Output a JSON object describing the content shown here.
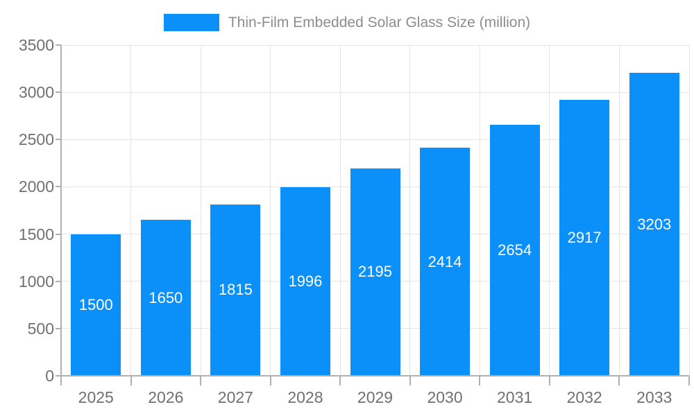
{
  "chart_data": {
    "type": "bar",
    "title": "Thin-Film Embedded Solar Glass Size (million)",
    "legend": {
      "position": "top",
      "entries": [
        "Thin-Film Embedded Solar Glass Size (million)"
      ]
    },
    "categories": [
      "2025",
      "2026",
      "2027",
      "2028",
      "2029",
      "2030",
      "2031",
      "2032",
      "2033"
    ],
    "series": [
      {
        "name": "Thin-Film Embedded Solar Glass Size (million)",
        "values": [
          1500,
          1650,
          1815,
          1996,
          2195,
          2414,
          2654,
          2917,
          3203
        ]
      }
    ],
    "value_labels_shown": true,
    "xlabel": "",
    "ylabel": "",
    "ylim": [
      0,
      3500
    ],
    "ytick_step": 500,
    "ytick_labels": [
      "0",
      "500",
      "1000",
      "1500",
      "2000",
      "2500",
      "3000",
      "3500"
    ],
    "grid": true,
    "colors": {
      "bar": "#0a90f8",
      "value_label": "#ffffff",
      "grid_line": "#e4e4e4",
      "axis_line": "#b0b0b0",
      "tick_label": "#707070",
      "legend_text": "#8c8c8c",
      "background": "#ffffff"
    }
  }
}
